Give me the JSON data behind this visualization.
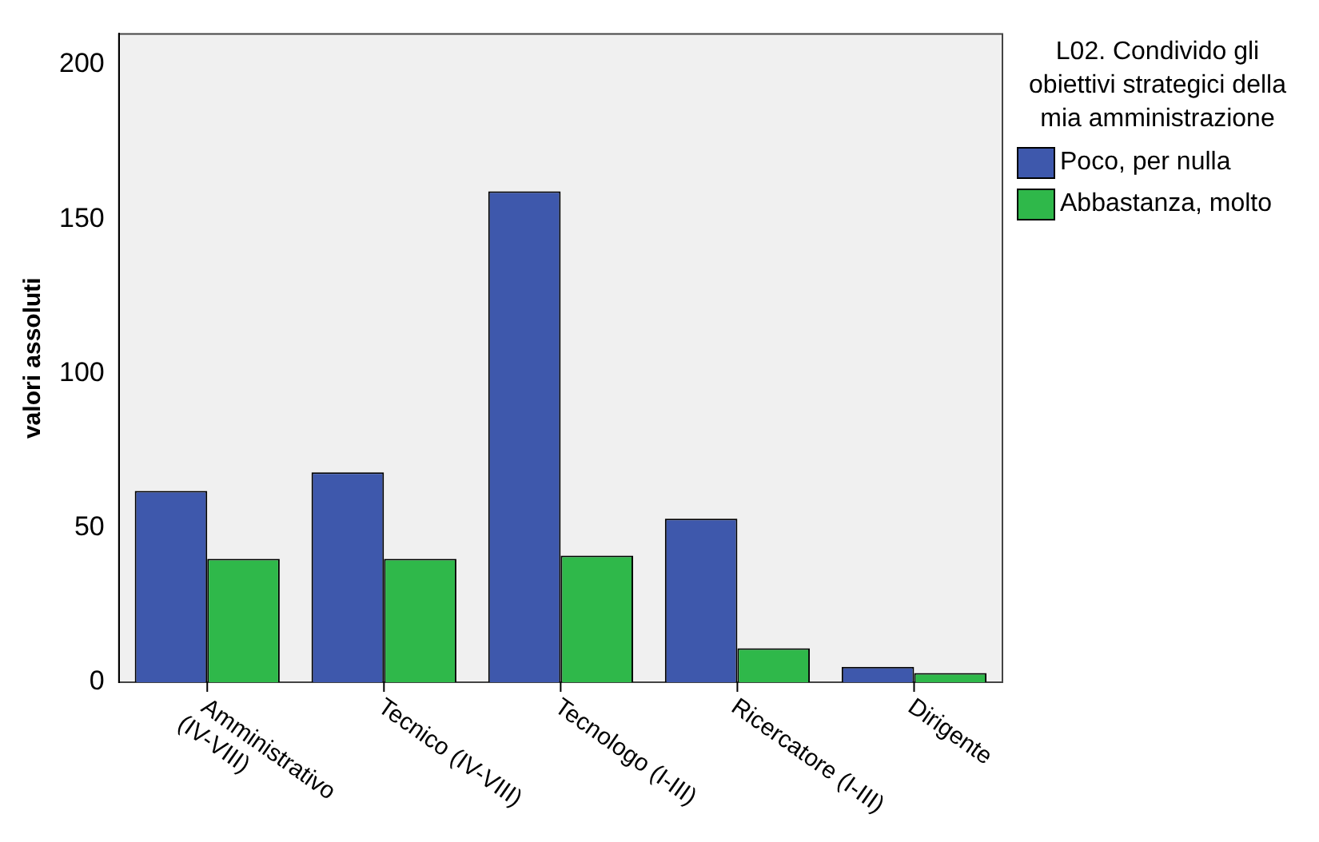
{
  "chart_data": {
    "type": "bar",
    "ylabel": "valori assoluti",
    "legend_title": "L02. Condivido gli obiettivi strategici della mia amministrazione",
    "categories": [
      "Amministrativo (IV-VIII)",
      "Tecnico (IV-VIII)",
      "Tecnologo (I-III)",
      "Ricercatore (I-III)",
      "Dirigente"
    ],
    "series": [
      {
        "name": "Poco, per nulla",
        "color": "#3e58ac",
        "values": [
          62,
          68,
          159,
          53,
          5
        ]
      },
      {
        "name": "Abbastanza, molto",
        "color": "#2fb84a",
        "values": [
          40,
          40,
          41,
          11,
          3
        ]
      }
    ],
    "ylim": [
      0,
      210
    ],
    "yticks": [
      0,
      50,
      100,
      150,
      200
    ],
    "grid": false,
    "legend": "right"
  }
}
